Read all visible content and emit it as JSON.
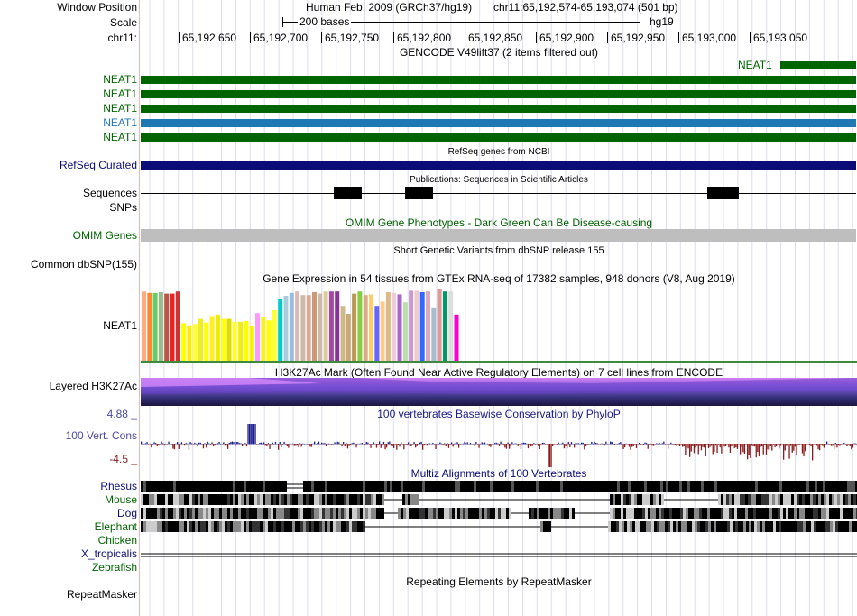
{
  "header": {
    "window_position_label": "Window Position",
    "assembly_text": "Human Feb. 2009 (GRCh37/hg19)",
    "position_text": "chr11:65,192,574-65,193,074 (501 bp)",
    "scale_label": "Scale",
    "scale_text": "200 bases",
    "scale_assembly": "hg19",
    "chrom_label": "chr11:",
    "ticks": [
      "65,192,650",
      "65,192,700",
      "65,192,750",
      "65,192,800",
      "65,192,850",
      "65,192,900",
      "65,192,950",
      "65,193,000",
      "65,193,050"
    ]
  },
  "gencode": {
    "title": "GENCODE V49lift37 (2 items filtered out)",
    "top_gene_label": "NEAT1",
    "genes": [
      "NEAT1",
      "NEAT1",
      "NEAT1",
      "NEAT1",
      "NEAT1"
    ],
    "colors": [
      "#006400",
      "#006400",
      "#006400",
      "#1f77b4",
      "#006400"
    ]
  },
  "refseq": {
    "title": "RefSeq genes from NCBI",
    "label": "RefSeq Curated",
    "color": "#0c0c78"
  },
  "publications": {
    "title": "Publications: Sequences in Scientific Articles",
    "label": "Sequences"
  },
  "snps": {
    "label": "SNPs"
  },
  "omim": {
    "title": "OMIM Gene Phenotypes - Dark Green Can Be Disease-causing",
    "label": "OMIM Genes"
  },
  "dbsnp": {
    "title": "Short Genetic Variants from dbSNP release 155",
    "label": "Common dbSNP(155)"
  },
  "gtex": {
    "title": "Gene Expression in 54 tissues from GTEx RNA-seq of 17382 samples, 948 donors (V8, Aug 2019)",
    "label": "NEAT1",
    "values": [
      0.96,
      0.94,
      0.94,
      0.95,
      0.93,
      0.93,
      0.96,
      0.52,
      0.49,
      0.51,
      0.58,
      0.53,
      0.62,
      0.64,
      0.58,
      0.58,
      0.54,
      0.54,
      0.55,
      0.48,
      0.66,
      0.61,
      0.56,
      0.7,
      0.86,
      0.9,
      0.94,
      0.96,
      0.91,
      0.91,
      0.95,
      0.93,
      0.96,
      0.96,
      0.96,
      0.76,
      0.65,
      0.93,
      0.96,
      0.91,
      0.92,
      0.76,
      0.82,
      0.95,
      0.94,
      0.92,
      0.81,
      0.97,
      0.97,
      0.95,
      0.96,
      0.74,
      1.0,
      0.96,
      0.96,
      0.64
    ],
    "colors": [
      "#ffaa7f",
      "#ff8833",
      "#66cc66",
      "#99bb88",
      "#bb5544",
      "#ee2222",
      "#cc3333",
      "#ffff00",
      "#ffee00",
      "#ffff33",
      "#eeee22",
      "#ffff00",
      "#ffee22",
      "#eeee00",
      "#ffff11",
      "#dddd00",
      "#ffff22",
      "#eeee11",
      "#ffff00",
      "#ffee00",
      "#ff99ff",
      "#ffee22",
      "#ffff00",
      "#ffff33",
      "#00cccc",
      "#aaccdd",
      "#99bbdd",
      "#ddb8b8",
      "#ccbbaa",
      "#ddaa99",
      "#cc9977",
      "#ccbbaa",
      "#ddcc99",
      "#aa44aa",
      "#883399",
      "#ccbb88",
      "#ccaa77",
      "#bb9955",
      "#88cc44",
      "#ddaa88",
      "#ffcc66",
      "#6666ff",
      "#ffcc88",
      "#ddbb88",
      "#eeccdd",
      "#aa66cc",
      "#bbddaa",
      "#cc99cc",
      "#eecccc",
      "#3366ff",
      "#ddaabb",
      "#aabbcc",
      "#dd9999",
      "#009966",
      "#dddddd",
      "#ff00cc"
    ]
  },
  "h3k27ac": {
    "title": "H3K27Ac Mark (Often Found Near Active Regulatory Elements) on 7 cell lines from ENCODE",
    "label": "Layered H3K27Ac"
  },
  "phylop": {
    "title": "100 vertebrates Basewise Conservation by PhyloP",
    "label": "100 Vert. Cons",
    "ymax_label": "4.88 _",
    "ymin_label": "-4.5 _",
    "ylim": [
      -4.5,
      4.88
    ],
    "pos_color": "#1a1a8c",
    "neg_color": "#8c1a1a"
  },
  "multiz": {
    "title": "Multiz Alignments of 100 Vertebrates",
    "species": [
      {
        "name": "Rhesus",
        "color": "#0c0c78"
      },
      {
        "name": "Mouse",
        "color": "#006400"
      },
      {
        "name": "Dog",
        "color": "#0c0c78"
      },
      {
        "name": "Elephant",
        "color": "#006400"
      },
      {
        "name": "Chicken",
        "color": "#006400"
      },
      {
        "name": "X_tropicalis",
        "color": "#0c0c78"
      },
      {
        "name": "Zebrafish",
        "color": "#006400"
      }
    ]
  },
  "repeatmasker": {
    "title": "Repeating Elements by RepeatMasker",
    "label": "RepeatMasker"
  }
}
